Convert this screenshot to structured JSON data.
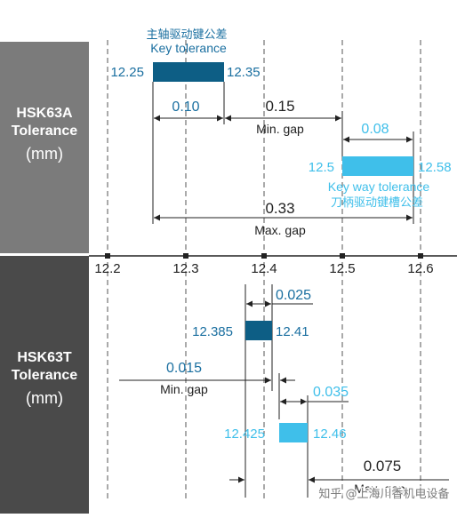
{
  "panel_a": {
    "name": "HSK63A",
    "tolerance": "Tolerance",
    "unit": "(mm)"
  },
  "panel_t": {
    "name": "HSK63T",
    "tolerance": "Tolerance",
    "unit": "(mm)"
  },
  "axis": {
    "ticks": [
      "12.2",
      "12.3",
      "12.4",
      "12.5",
      "12.6"
    ]
  },
  "hsk63a": {
    "key_cn": "主轴驱动键公差",
    "key_en": "Key tolerance",
    "key_min": "12.25",
    "key_max": "12.35",
    "key_width": "0.10",
    "min_gap": "0.15",
    "min_gap_label": "Min. gap",
    "slot_width": "0.08",
    "slot_min": "12.5",
    "slot_max": "12.58",
    "slot_en": "Key way tolerance",
    "slot_cn": "刀柄驱动键槽公差",
    "max_gap": "0.33",
    "max_gap_label": "Max. gap"
  },
  "hsk63t": {
    "key_width": "0.025",
    "key_min": "12.385",
    "key_max": "12.41",
    "min_gap": "0.015",
    "min_gap_label": "Min. gap",
    "slot_width": "0.035",
    "slot_min": "12.425",
    "slot_max": "12.46",
    "max_gap": "0.075",
    "max_gap_label": "Max. gap"
  },
  "watermark": "知乎 @上海川香机电设备",
  "colors": {
    "panel_gray": "#7b7b7b",
    "panel_dark": "#4a4a4a",
    "key_blue": "#0d5e85",
    "slot_blue": "#3fbfea"
  }
}
